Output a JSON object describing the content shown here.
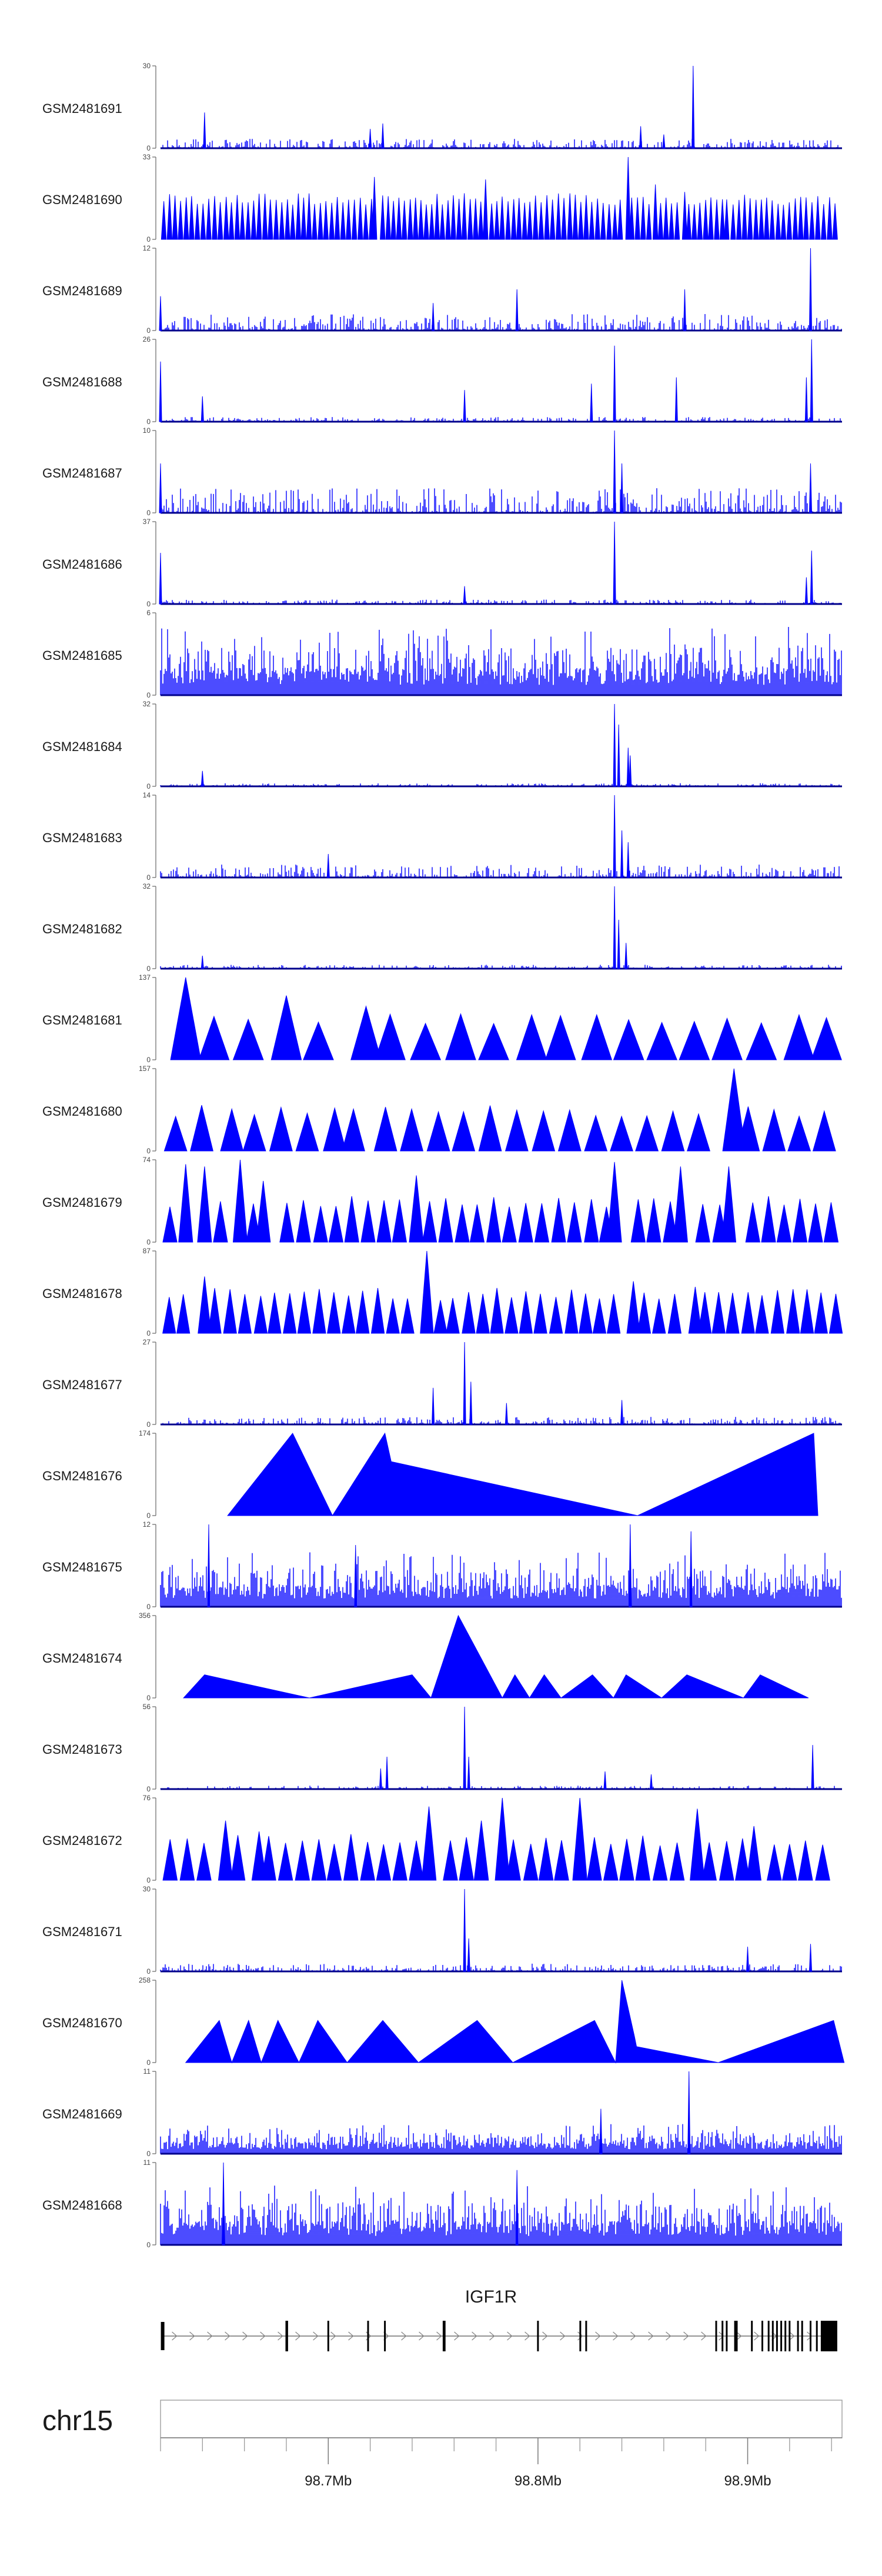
{
  "chart_data": {
    "type": "area",
    "region": {
      "chromosome": "chr15",
      "start_mb": 98.62,
      "end_mb": 98.945
    },
    "gene": {
      "name": "IGF1R",
      "exon_positions_mb": [
        98.621,
        98.68,
        98.6804,
        98.7,
        98.719,
        98.727,
        98.755,
        98.7555,
        98.8,
        98.8202,
        98.823,
        98.885,
        98.888,
        98.89,
        98.894,
        98.8948,
        98.902,
        98.907,
        98.91,
        98.912,
        98.914,
        98.916,
        98.918,
        98.92,
        98.924,
        98.926,
        98.93,
        98.933,
        98.936
      ]
    },
    "axis": {
      "ticks_mb": [
        98.7,
        98.8,
        98.9
      ],
      "tick_labels": [
        "98.7Mb",
        "98.8Mb",
        "98.9Mb"
      ]
    },
    "tracks": [
      {
        "name": "GSM2481691",
        "ymax": "30",
        "style": "dense",
        "noise": 3.4,
        "peaks": [
          [
            98.641,
            13
          ],
          [
            98.72,
            7
          ],
          [
            98.726,
            9
          ],
          [
            98.849,
            8
          ],
          [
            98.874,
            30
          ],
          [
            98.86,
            5
          ]
        ]
      },
      {
        "name": "GSM2481690",
        "ymax": "33",
        "style": "triangle",
        "spacing": 0.0026,
        "peaks": [
          [
            98.722,
            25
          ],
          [
            98.775,
            24
          ],
          [
            98.843,
            33
          ],
          [
            98.856,
            22
          ],
          [
            98.87,
            19
          ],
          [
            98.89,
            16
          ]
        ]
      },
      {
        "name": "GSM2481689",
        "ymax": "12",
        "style": "dense",
        "noise": 2.4,
        "peaks": [
          [
            98.62,
            5
          ],
          [
            98.79,
            6
          ],
          [
            98.87,
            6
          ],
          [
            98.93,
            12
          ],
          [
            98.75,
            4
          ]
        ]
      },
      {
        "name": "GSM2481688",
        "ymax": "26",
        "style": "dense",
        "noise": 1.5,
        "peaks": [
          [
            98.62,
            19
          ],
          [
            98.64,
            8
          ],
          [
            98.765,
            10
          ],
          [
            98.8255,
            12
          ],
          [
            98.8365,
            24
          ],
          [
            98.866,
            14
          ],
          [
            98.9305,
            26
          ],
          [
            98.928,
            14
          ]
        ]
      },
      {
        "name": "GSM2481687",
        "ymax": "10",
        "style": "dense",
        "noise": 3,
        "peaks": [
          [
            98.62,
            6
          ],
          [
            98.8365,
            10
          ],
          [
            98.84,
            6
          ],
          [
            98.93,
            6
          ]
        ]
      },
      {
        "name": "GSM2481686",
        "ymax": "37",
        "style": "dense",
        "noise": 2,
        "peaks": [
          [
            98.62,
            23
          ],
          [
            98.765,
            8
          ],
          [
            98.8365,
            37
          ],
          [
            98.9305,
            24
          ],
          [
            98.928,
            12
          ]
        ]
      },
      {
        "name": "GSM2481685",
        "ymax": "6",
        "style": "spiky",
        "noise": 5,
        "peaks": []
      },
      {
        "name": "GSM2481684",
        "ymax": "32",
        "style": "dense",
        "noise": 1.2,
        "peaks": [
          [
            98.64,
            6
          ],
          [
            98.8365,
            32
          ],
          [
            98.8385,
            24
          ],
          [
            98.843,
            15
          ],
          [
            98.844,
            12
          ]
        ]
      },
      {
        "name": "GSM2481683",
        "ymax": "14",
        "style": "dense",
        "noise": 2.2,
        "peaks": [
          [
            98.8365,
            14
          ],
          [
            98.84,
            8
          ],
          [
            98.843,
            6
          ],
          [
            98.7,
            4
          ]
        ]
      },
      {
        "name": "GSM2481682",
        "ymax": "32",
        "style": "dense",
        "noise": 1.5,
        "peaks": [
          [
            98.64,
            5
          ],
          [
            98.8365,
            32
          ],
          [
            98.8385,
            19
          ],
          [
            98.842,
            10
          ]
        ]
      },
      {
        "name": "GSM2481681",
        "ymax": "137",
        "style": "triangle",
        "spacing": 0.016,
        "peaks": [
          [
            98.632,
            137
          ],
          [
            98.68,
            107
          ],
          [
            98.705,
            80
          ],
          [
            98.718,
            89
          ],
          [
            98.797,
            75
          ],
          [
            98.828,
            75
          ],
          [
            98.9245,
            75
          ]
        ]
      },
      {
        "name": "GSM2481680",
        "ymax": "157",
        "style": "triangle",
        "spacing": 0.012,
        "peaks": [
          [
            98.654,
            80
          ],
          [
            98.712,
            80
          ],
          [
            98.8935,
            157
          ]
        ]
      },
      {
        "name": "GSM2481679",
        "ymax": "74",
        "style": "triangle",
        "spacing": 0.0075,
        "peaks": [
          [
            98.632,
            70
          ],
          [
            98.641,
            68
          ],
          [
            98.658,
            74
          ],
          [
            98.669,
            55
          ],
          [
            98.742,
            60
          ],
          [
            98.8365,
            72
          ],
          [
            98.868,
            68
          ],
          [
            98.891,
            68
          ]
        ]
      },
      {
        "name": "GSM2481678",
        "ymax": "87",
        "style": "triangle",
        "spacing": 0.0069,
        "peaks": [
          [
            98.641,
            60
          ],
          [
            98.747,
            87
          ],
          [
            98.7535,
            35
          ],
          [
            98.8455,
            55
          ],
          [
            98.875,
            49
          ]
        ]
      },
      {
        "name": "GSM2481677",
        "ymax": "27",
        "style": "dense",
        "noise": 2.5,
        "peaks": [
          [
            98.75,
            12
          ],
          [
            98.765,
            27
          ],
          [
            98.768,
            14
          ],
          [
            98.84,
            8
          ],
          [
            98.785,
            7
          ]
        ]
      },
      {
        "name": "GSM2481676",
        "ymax": "174",
        "style": "segments",
        "points": [
          [
            98.652,
            0
          ],
          [
            98.683,
            174
          ],
          [
            98.702,
            0
          ],
          [
            98.727,
            174
          ],
          [
            98.73,
            114
          ],
          [
            98.8475,
            0
          ],
          [
            98.9315,
            174
          ],
          [
            98.9335,
            0
          ]
        ]
      },
      {
        "name": "GSM2481675",
        "ymax": "12",
        "style": "spiky",
        "noise": 8,
        "peaks": [
          [
            98.643,
            12
          ],
          [
            98.713,
            9
          ],
          [
            98.844,
            12
          ],
          [
            98.873,
            11
          ]
        ]
      },
      {
        "name": "GSM2481674",
        "ymax": "356",
        "style": "segments",
        "points": [
          [
            98.631,
            0
          ],
          [
            98.641,
            100
          ],
          [
            98.691,
            0
          ],
          [
            98.74,
            100
          ],
          [
            98.749,
            0
          ],
          [
            98.762,
            356
          ],
          [
            98.783,
            0
          ],
          [
            98.789,
            100
          ],
          [
            98.796,
            0
          ],
          [
            98.803,
            100
          ],
          [
            98.811,
            0
          ],
          [
            98.826,
            100
          ],
          [
            98.836,
            0
          ],
          [
            98.842,
            100
          ],
          [
            98.859,
            0
          ],
          [
            98.871,
            100
          ],
          [
            98.898,
            0
          ],
          [
            98.906,
            100
          ],
          [
            98.929,
            0
          ]
        ]
      },
      {
        "name": "GSM2481673",
        "ymax": "56",
        "style": "dense",
        "noise": 2.3,
        "peaks": [
          [
            98.725,
            14
          ],
          [
            98.728,
            22
          ],
          [
            98.765,
            56
          ],
          [
            98.767,
            22
          ],
          [
            98.832,
            12
          ],
          [
            98.854,
            10
          ],
          [
            98.931,
            30
          ]
        ]
      },
      {
        "name": "GSM2481672",
        "ymax": "76",
        "style": "triangle",
        "spacing": 0.0076,
        "peaks": [
          [
            98.651,
            55
          ],
          [
            98.667,
            45
          ],
          [
            98.748,
            68
          ],
          [
            98.773,
            55
          ],
          [
            98.783,
            76
          ],
          [
            98.8155,
            76
          ],
          [
            98.82,
            76
          ],
          [
            98.876,
            66
          ],
          [
            98.903,
            50
          ]
        ]
      },
      {
        "name": "GSM2481671",
        "ymax": "30",
        "style": "dense",
        "noise": 2.8,
        "peaks": [
          [
            98.765,
            30
          ],
          [
            98.767,
            12
          ],
          [
            98.9,
            9
          ],
          [
            98.93,
            10
          ]
        ]
      },
      {
        "name": "GSM2481670",
        "ymax": "258",
        "style": "segments",
        "points": [
          [
            98.632,
            0
          ],
          [
            98.648,
            132
          ],
          [
            98.654,
            0
          ],
          [
            98.662,
            132
          ],
          [
            98.668,
            0
          ],
          [
            98.676,
            132
          ],
          [
            98.686,
            0
          ],
          [
            98.695,
            132
          ],
          [
            98.709,
            0
          ],
          [
            98.726,
            132
          ],
          [
            98.743,
            0
          ],
          [
            98.771,
            132
          ],
          [
            98.788,
            0
          ],
          [
            98.827,
            132
          ],
          [
            98.837,
            0
          ],
          [
            98.84,
            258
          ],
          [
            98.846,
            82
          ],
          [
            98.847,
            50
          ],
          [
            98.886,
            0
          ],
          [
            98.941,
            132
          ],
          [
            98.946,
            0
          ]
        ]
      },
      {
        "name": "GSM2481669",
        "ymax": "11",
        "style": "spiky",
        "noise": 4,
        "peaks": [
          [
            98.872,
            11
          ],
          [
            98.83,
            6
          ]
        ]
      },
      {
        "name": "GSM2481668",
        "ymax": "11",
        "style": "spiky",
        "noise": 8,
        "peaks": [
          [
            98.65,
            11
          ],
          [
            98.79,
            10
          ]
        ]
      }
    ]
  }
}
